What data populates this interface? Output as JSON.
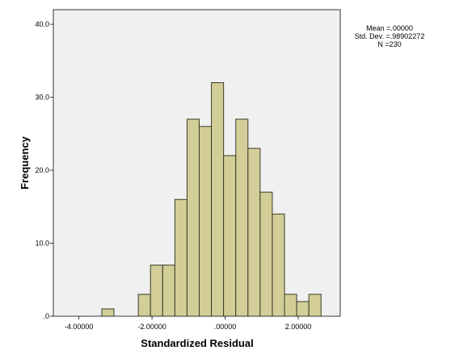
{
  "chart_data": {
    "type": "bar",
    "subtype": "histogram",
    "xlabel": "Standardized Residual",
    "ylabel": "Frequency",
    "xlim": [
      -4.7,
      3.15
    ],
    "ylim": [
      0,
      42
    ],
    "x_ticks": [
      {
        "value": -4,
        "label": "-4.00000"
      },
      {
        "value": -2,
        "label": "-2.00000"
      },
      {
        "value": 0,
        "label": ".00000"
      },
      {
        "value": 2,
        "label": "2.00000"
      }
    ],
    "y_ticks": [
      {
        "value": 0,
        "label": ".0"
      },
      {
        "value": 10,
        "label": "10.0"
      },
      {
        "value": 20,
        "label": "20.0"
      },
      {
        "value": 30,
        "label": "30.0"
      },
      {
        "value": 40,
        "label": "40.0"
      }
    ],
    "bin_width": 0.333,
    "bins": [
      {
        "start": -3.375,
        "count": 1
      },
      {
        "start": -3.042,
        "count": 0
      },
      {
        "start": -2.708,
        "count": 0
      },
      {
        "start": -2.375,
        "count": 3
      },
      {
        "start": -2.042,
        "count": 7
      },
      {
        "start": -1.708,
        "count": 7
      },
      {
        "start": -1.375,
        "count": 16
      },
      {
        "start": -1.042,
        "count": 27
      },
      {
        "start": -0.708,
        "count": 26
      },
      {
        "start": -0.375,
        "count": 32
      },
      {
        "start": -0.042,
        "count": 22
      },
      {
        "start": 0.292,
        "count": 27
      },
      {
        "start": 0.625,
        "count": 23
      },
      {
        "start": 0.958,
        "count": 17
      },
      {
        "start": 1.292,
        "count": 14
      },
      {
        "start": 1.625,
        "count": 3
      },
      {
        "start": 1.958,
        "count": 2
      },
      {
        "start": 2.292,
        "count": 3
      }
    ],
    "grid": false,
    "colors": {
      "plot_background": "#f0f0f0",
      "bar_fill": "#d3ce97",
      "bar_stroke": "#3a3a2a",
      "axis": "#333333"
    }
  },
  "stats": {
    "mean": "Mean =.00000",
    "std_dev": "Std. Dev. =.98902272",
    "n": "N =230"
  }
}
